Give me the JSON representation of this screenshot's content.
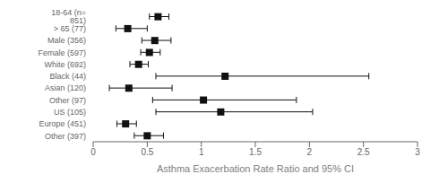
{
  "chart_data": {
    "type": "forest",
    "categories": [
      "18-64 (n= 851)",
      "> 65 (77)",
      "Male (356)",
      "Female (597)",
      "White (692)",
      "Black (44)",
      "Asian (120)",
      "Other (97)",
      "US (105)",
      "Europe (451)",
      "Other (397)"
    ],
    "values": [
      0.6,
      0.32,
      0.57,
      0.52,
      0.42,
      1.22,
      0.33,
      1.02,
      1.18,
      0.3,
      0.5
    ],
    "ci_low": [
      0.52,
      0.21,
      0.45,
      0.44,
      0.34,
      0.58,
      0.15,
      0.55,
      0.58,
      0.22,
      0.38
    ],
    "ci_high": [
      0.7,
      0.5,
      0.72,
      0.62,
      0.51,
      2.55,
      0.73,
      1.88,
      2.03,
      0.4,
      0.65
    ],
    "xlabel": "Asthma Exacerbation Rate Ratio and 95% CI",
    "xlim": [
      0,
      3
    ],
    "xticks": [
      0,
      0.5,
      1,
      1.5,
      2,
      2.5,
      3
    ],
    "color": "#111111",
    "marker": "square"
  }
}
